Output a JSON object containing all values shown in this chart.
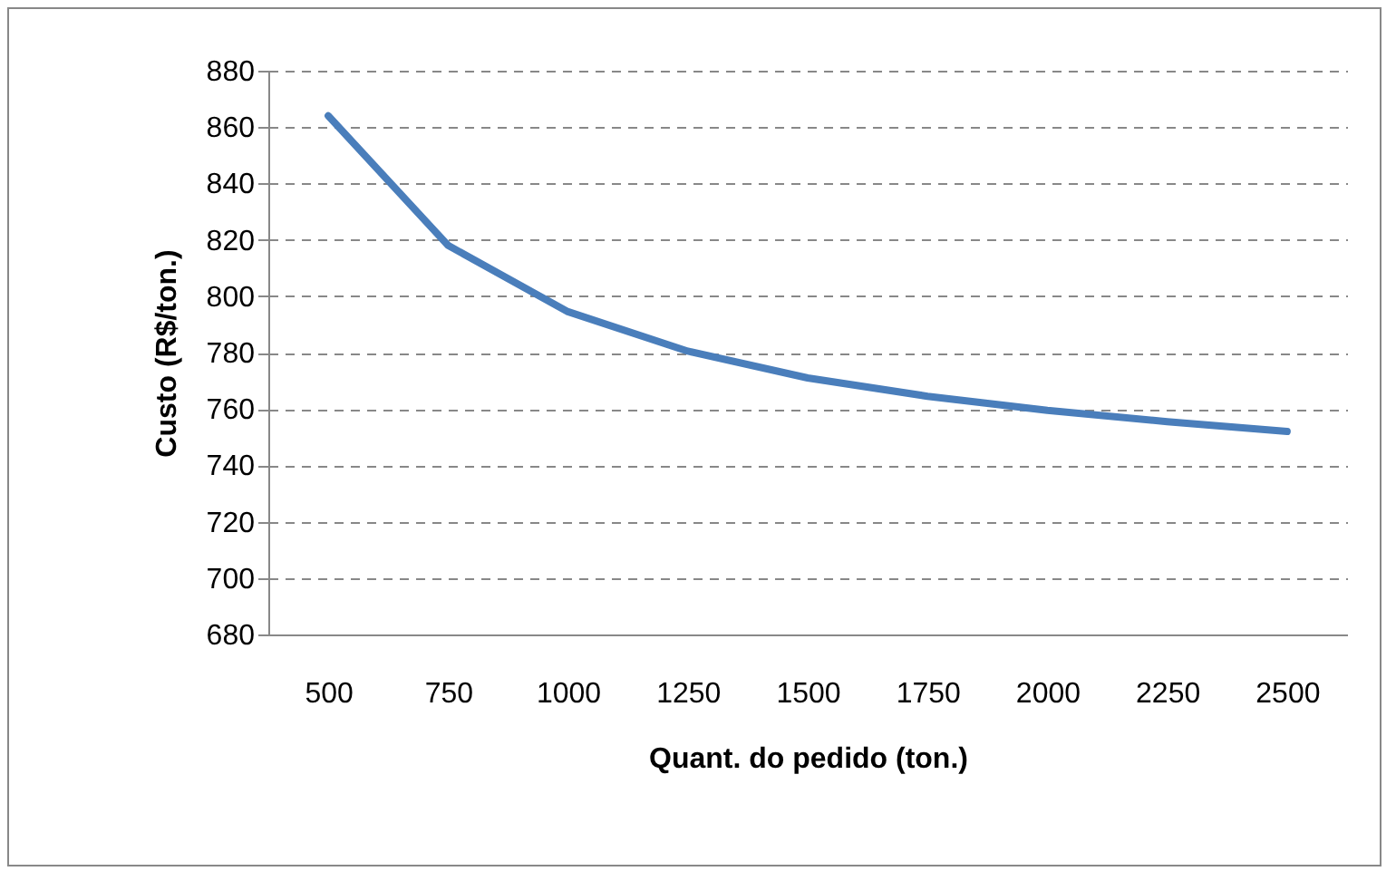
{
  "chart_data": {
    "type": "line",
    "xlabel": "Quant. do pedido (ton.)",
    "ylabel": "Custo (R$/ton.)",
    "categories": [
      "500",
      "750",
      "1000",
      "1250",
      "1500",
      "1750",
      "2000",
      "2250",
      "2500"
    ],
    "series": [
      {
        "color": "#4a7ebb",
        "values": [
          864,
          818,
          794.5,
          780.5,
          771,
          764.5,
          759.5,
          755.5,
          752
        ]
      }
    ],
    "ylim": [
      680,
      880
    ],
    "yticks": [
      680,
      700,
      720,
      740,
      760,
      780,
      800,
      820,
      840,
      860,
      880
    ],
    "grid": "y",
    "marker": "none",
    "line_style": "solid"
  }
}
